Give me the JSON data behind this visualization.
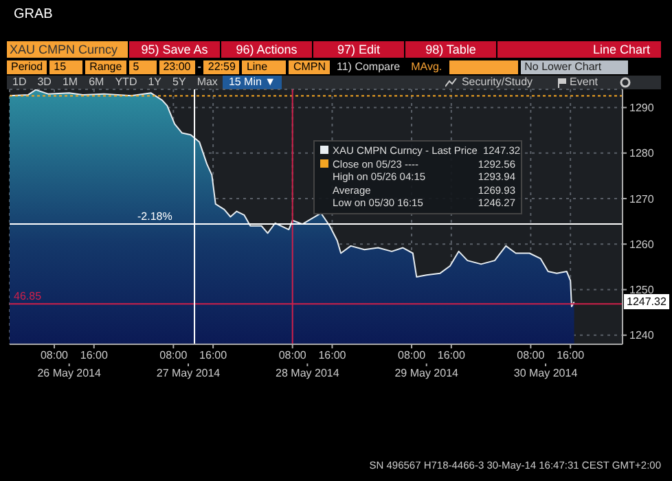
{
  "chart_data": {
    "type": "area",
    "title": "GRAB",
    "x": [
      "2014-05-25T23:00",
      "2014-05-26T02:45",
      "2014-05-26T04:15",
      "2014-05-26T06:45",
      "2014-05-26T11:00",
      "2014-05-26T13:45",
      "2014-05-26T18:00",
      "2014-05-26T23:30",
      "2014-05-27T03:30",
      "2014-05-27T05:45",
      "2014-05-27T06:45",
      "2014-05-27T08:15",
      "2014-05-27T09:45",
      "2014-05-27T11:30",
      "2014-05-27T13:15",
      "2014-05-27T14:45",
      "2014-05-27T15:45",
      "2014-05-27T16:30",
      "2014-05-27T18:15",
      "2014-05-27T19:30",
      "2014-05-27T20:45",
      "2014-05-27T22:15",
      "2014-05-27T23:30",
      "2014-05-28T01:45",
      "2014-05-28T03:00",
      "2014-05-28T04:30",
      "2014-05-28T07:15",
      "2014-05-28T08:00",
      "2014-05-28T10:00",
      "2014-05-28T13:45",
      "2014-05-28T15:30",
      "2014-05-28T17:00",
      "2014-05-28T17:45",
      "2014-05-28T19:45",
      "2014-05-28T22:30",
      "2014-05-29T01:15",
      "2014-05-29T04:00",
      "2014-05-29T06:15",
      "2014-05-29T08:15",
      "2014-05-29T09:00",
      "2014-05-29T11:00",
      "2014-05-29T13:45",
      "2014-05-29T15:45",
      "2014-05-29T17:30",
      "2014-05-29T19:15",
      "2014-05-29T22:00",
      "2014-05-30T00:45",
      "2014-05-30T03:00",
      "2014-05-30T05:00",
      "2014-05-30T07:45",
      "2014-05-30T10:00",
      "2014-05-30T11:30",
      "2014-05-30T13:15",
      "2014-05-30T15:15",
      "2014-05-30T16:00",
      "2014-05-30T16:15",
      "2014-05-30T16:45"
    ],
    "series": [
      {
        "name": "XAU CMPN Curncy - Last Price",
        "color": "#e8eef2",
        "values": [
          1292.6,
          1292.8,
          1293.9,
          1293.0,
          1293.2,
          1292.8,
          1293.0,
          1292.6,
          1293.2,
          1291.6,
          1290.4,
          1286.4,
          1284.4,
          1284.0,
          1282.4,
          1277.6,
          1275.2,
          1268.8,
          1267.6,
          1266.0,
          1267.2,
          1266.4,
          1264.0,
          1264.0,
          1262.4,
          1264.6,
          1263.2,
          1265.2,
          1264.4,
          1266.8,
          1264.0,
          1260.8,
          1258.0,
          1259.6,
          1258.8,
          1259.2,
          1258.4,
          1259.2,
          1258.0,
          1252.8,
          1253.2,
          1253.6,
          1255.2,
          1258.4,
          1256.4,
          1255.6,
          1256.4,
          1259.6,
          1258.0,
          1258.0,
          1256.8,
          1254.0,
          1253.6,
          1254.0,
          1252.0,
          1246.3,
          1247.3
        ]
      }
    ],
    "xlim": [
      "2014-05-25T23:00",
      "2014-05-31T02:30"
    ],
    "xticks": [
      {
        "value": "2014-05-26T08:00",
        "label": "08:00"
      },
      {
        "value": "2014-05-26T16:00",
        "label": "16:00"
      },
      {
        "value": "2014-05-27T08:00",
        "label": "08:00"
      },
      {
        "value": "2014-05-27T16:00",
        "label": "16:00"
      },
      {
        "value": "2014-05-28T08:00",
        "label": "08:00"
      },
      {
        "value": "2014-05-28T16:00",
        "label": "16:00"
      },
      {
        "value": "2014-05-29T08:00",
        "label": "08:00"
      },
      {
        "value": "2014-05-29T16:00",
        "label": "16:00"
      },
      {
        "value": "2014-05-30T08:00",
        "label": "08:00"
      },
      {
        "value": "2014-05-30T16:00",
        "label": "16:00"
      }
    ],
    "x2lim": [
      "2014-05-25T23:00",
      "2014-05-31T02:30"
    ],
    "x2ticks": [
      {
        "value": "2014-05-26T11:00",
        "label": "26 May 2014"
      },
      {
        "value": "2014-05-27T11:00",
        "label": "27 May 2014"
      },
      {
        "value": "2014-05-28T11:00",
        "label": "28 May 2014"
      },
      {
        "value": "2014-05-29T11:00",
        "label": "29 May 2014"
      },
      {
        "value": "2014-05-30T11:00",
        "label": "30 May 2014"
      }
    ],
    "ylim": [
      1238,
      1294
    ],
    "yticks": [
      1240,
      1250,
      1260,
      1270,
      1280,
      1290
    ],
    "grid": true,
    "legend": "top right",
    "ref_lines": [
      {
        "axis": "y",
        "value": 1292.56,
        "label": "Close on 05/23 ----",
        "color": "#f5a623",
        "line_style": "dotted"
      },
      {
        "axis": "y",
        "value": 1246.85,
        "color": "#d0204a"
      },
      {
        "axis": "x",
        "value": "2014-05-28T08:00",
        "color": "#d0204a"
      },
      {
        "axis": "y",
        "value": 1264.4,
        "color": "#ffffff"
      },
      {
        "axis": "x",
        "value": "2014-05-27T12:15",
        "color": "#ffffff"
      }
    ],
    "annotations": [
      "XAU CMPN Curncy",
      "95) Save As",
      "96) Actions",
      "97) Edit",
      "98) Table",
      "Line Chart",
      "Period",
      "15",
      "Range",
      "5",
      "23:00",
      "-",
      "22:59",
      "Line",
      "CMPN",
      "11) Compare",
      "MAvg.",
      "No Lower Chart",
      "1D",
      "3D",
      "1M",
      "6M",
      "YTD",
      "1Y",
      "5Y",
      "Max",
      "15 Min ▼",
      "Security/Study",
      "Event",
      "SN 496567 H718-4466-3 30-May-14 16:47:31 CEST GMT+2:00",
      "46.85",
      "-2.18%",
      "1247.32",
      "1292.56",
      "High on 05/26 04:15",
      "1293.94",
      "Average",
      "1269.93",
      "Low on 05/30 16:15",
      "1246.27",
      "1247.32"
    ]
  }
}
